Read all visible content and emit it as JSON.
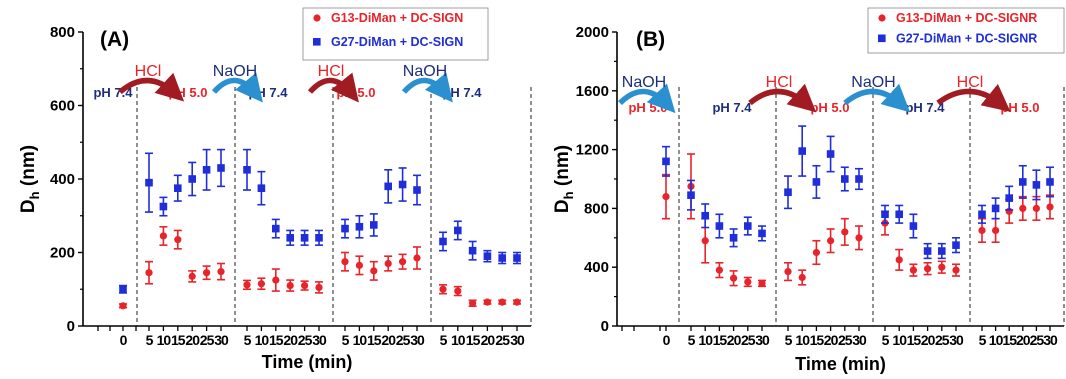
{
  "chart_data": [
    {
      "type": "scatter",
      "panel_label": "(A)",
      "xlabel": "Time (min)",
      "ylabel_main": "D",
      "ylabel_sub": "h",
      "ylabel_unit": " (nm)",
      "ylim": [
        0,
        800
      ],
      "y_ticks": [
        "0",
        "200",
        "400",
        "600",
        "800"
      ],
      "segments": [
        {
          "x_ticks": [
            "0"
          ],
          "x": [
            0
          ]
        },
        {
          "x_ticks": [
            "5",
            "10",
            "15",
            "20",
            "25",
            "30"
          ],
          "x": [
            5,
            10,
            15,
            20,
            25,
            30
          ]
        },
        {
          "x_ticks": [
            "5",
            "10",
            "15",
            "20",
            "25",
            "30"
          ],
          "x": [
            5,
            10,
            15,
            20,
            25,
            30
          ]
        },
        {
          "x_ticks": [
            "5",
            "10",
            "15",
            "20",
            "25",
            "30"
          ],
          "x": [
            5,
            10,
            15,
            20,
            25,
            30
          ]
        },
        {
          "x_ticks": [
            "5",
            "10",
            "15",
            "20",
            "25",
            "30"
          ],
          "x": [
            5,
            10,
            15,
            20,
            25,
            30
          ]
        }
      ],
      "series": [
        {
          "name": "G13-DiMan + DC-SIGN",
          "color": "#e8232a",
          "marker": "circle",
          "segments": [
            {
              "values": [
                55
              ],
              "errors": [
                5
              ]
            },
            {
              "values": [
                145,
                245,
                235,
                135,
                145,
                148
              ],
              "errors": [
                30,
                25,
                25,
                15,
                18,
                22
              ]
            },
            {
              "values": [
                112,
                115,
                125,
                110,
                110,
                105
              ],
              "errors": [
                12,
                15,
                30,
                15,
                12,
                15
              ]
            },
            {
              "values": [
                175,
                165,
                150,
                170,
                175,
                185
              ],
              "errors": [
                25,
                25,
                25,
                20,
                20,
                30
              ]
            },
            {
              "values": [
                100,
                95,
                62,
                65,
                65,
                65
              ],
              "errors": [
                12,
                12,
                8,
                5,
                5,
                5
              ]
            }
          ]
        },
        {
          "name": "G27-DiMan + DC-SIGN",
          "color": "#1f2ed8",
          "marker": "square",
          "segments": [
            {
              "values": [
                100
              ],
              "errors": [
                10
              ]
            },
            {
              "values": [
                390,
                325,
                375,
                400,
                425,
                430
              ],
              "errors": [
                80,
                25,
                35,
                45,
                55,
                50
              ]
            },
            {
              "values": [
                425,
                375,
                265,
                240,
                240,
                240
              ],
              "errors": [
                55,
                45,
                25,
                20,
                20,
                20
              ]
            },
            {
              "values": [
                265,
                270,
                275,
                380,
                385,
                370
              ],
              "errors": [
                25,
                30,
                30,
                45,
                45,
                40
              ]
            },
            {
              "values": [
                230,
                260,
                205,
                190,
                185,
                185
              ],
              "errors": [
                25,
                25,
                25,
                15,
                15,
                15
              ]
            }
          ]
        }
      ],
      "legend_position": "top-right",
      "annotations": {
        "ph_labels": [
          {
            "text": "pH 7.4",
            "color": "#1c2e7d"
          },
          {
            "text": "pH 5.0",
            "color": "#e8232a"
          },
          {
            "text": "pH 7.4",
            "color": "#1c2e7d"
          },
          {
            "text": "pH 5.0",
            "color": "#e8232a"
          },
          {
            "text": "pH 7.4",
            "color": "#1c2e7d"
          }
        ],
        "reagent_arrows": [
          {
            "text": "HCl",
            "color": "#a01b22",
            "text_color": "#e8232a"
          },
          {
            "text": "NaOH",
            "color": "#2a90d0",
            "text_color": "#1c2e7d"
          },
          {
            "text": "HCl",
            "color": "#a01b22",
            "text_color": "#e8232a"
          },
          {
            "text": "NaOH",
            "color": "#2a90d0",
            "text_color": "#1c2e7d"
          }
        ]
      }
    },
    {
      "type": "scatter",
      "panel_label": "(B)",
      "xlabel": "Time (min)",
      "ylabel_main": "D",
      "ylabel_sub": "h",
      "ylabel_unit": " (nm)",
      "ylim": [
        0,
        2000
      ],
      "y_ticks": [
        "0",
        "400",
        "800",
        "1200",
        "1600",
        "2000"
      ],
      "segments": [
        {
          "x_ticks": [
            "0"
          ],
          "x": [
            0
          ]
        },
        {
          "x_ticks": [
            "5",
            "10",
            "15",
            "20",
            "25",
            "30"
          ],
          "x": [
            5,
            10,
            15,
            20,
            25,
            30
          ]
        },
        {
          "x_ticks": [
            "5",
            "10",
            "15",
            "20",
            "25",
            "30"
          ],
          "x": [
            5,
            10,
            15,
            20,
            25,
            30
          ]
        },
        {
          "x_ticks": [
            "5",
            "10",
            "15",
            "20",
            "25",
            "30"
          ],
          "x": [
            5,
            10,
            15,
            20,
            25,
            30
          ]
        },
        {
          "x_ticks": [
            "5",
            "10",
            "15",
            "20",
            "25",
            "30"
          ],
          "x": [
            5,
            10,
            15,
            20,
            25,
            30
          ]
        }
      ],
      "series": [
        {
          "name": "G13-DiMan + DC-SIGNR",
          "color": "#e8232a",
          "marker": "circle",
          "segments": [
            {
              "values": [
                880
              ],
              "errors": [
                150
              ]
            },
            {
              "values": [
                950,
                580,
                380,
                325,
                300,
                290
              ],
              "errors": [
                220,
                150,
                50,
                50,
                30,
                20
              ]
            },
            {
              "values": [
                370,
                330,
                500,
                580,
                640,
                600
              ],
              "errors": [
                60,
                50,
                80,
                80,
                90,
                80
              ]
            },
            {
              "values": [
                700,
                450,
                380,
                390,
                400,
                380
              ],
              "errors": [
                80,
                70,
                40,
                40,
                40,
                40
              ]
            },
            {
              "values": [
                650,
                650,
                780,
                800,
                800,
                810
              ],
              "errors": [
                80,
                80,
                80,
                80,
                80,
                80
              ]
            }
          ]
        },
        {
          "name": "G27-DiMan + DC-SIGNR",
          "color": "#1f2ed8",
          "marker": "square",
          "segments": [
            {
              "values": [
                1120
              ],
              "errors": [
                100
              ]
            },
            {
              "values": [
                890,
                750,
                680,
                600,
                680,
                630
              ],
              "errors": [
                100,
                80,
                80,
                60,
                60,
                50
              ]
            },
            {
              "values": [
                910,
                1190,
                980,
                1170,
                1000,
                1000
              ],
              "errors": [
                110,
                170,
                110,
                120,
                80,
                70
              ]
            },
            {
              "values": [
                760,
                760,
                680,
                510,
                510,
                550
              ],
              "errors": [
                60,
                60,
                80,
                50,
                50,
                50
              ]
            },
            {
              "values": [
                760,
                800,
                870,
                980,
                960,
                980
              ],
              "errors": [
                60,
                70,
                80,
                110,
                100,
                100
              ]
            }
          ]
        }
      ],
      "legend_position": "top-right",
      "annotations": {
        "ph_labels": [
          {
            "text": "pH 5.0",
            "color": "#e8232a"
          },
          {
            "text": "pH 7.4",
            "color": "#1c2e7d"
          },
          {
            "text": "pH 5.0",
            "color": "#e8232a"
          },
          {
            "text": "pH 7.4",
            "color": "#1c2e7d"
          },
          {
            "text": "pH 5.0",
            "color": "#e8232a"
          }
        ],
        "reagent_arrows": [
          {
            "text": "NaOH",
            "color": "#2a90d0",
            "text_color": "#1c2e7d"
          },
          {
            "text": "HCl",
            "color": "#a01b22",
            "text_color": "#e8232a"
          },
          {
            "text": "NaOH",
            "color": "#2a90d0",
            "text_color": "#1c2e7d"
          },
          {
            "text": "HCl",
            "color": "#a01b22",
            "text_color": "#e8232a"
          }
        ]
      }
    }
  ]
}
